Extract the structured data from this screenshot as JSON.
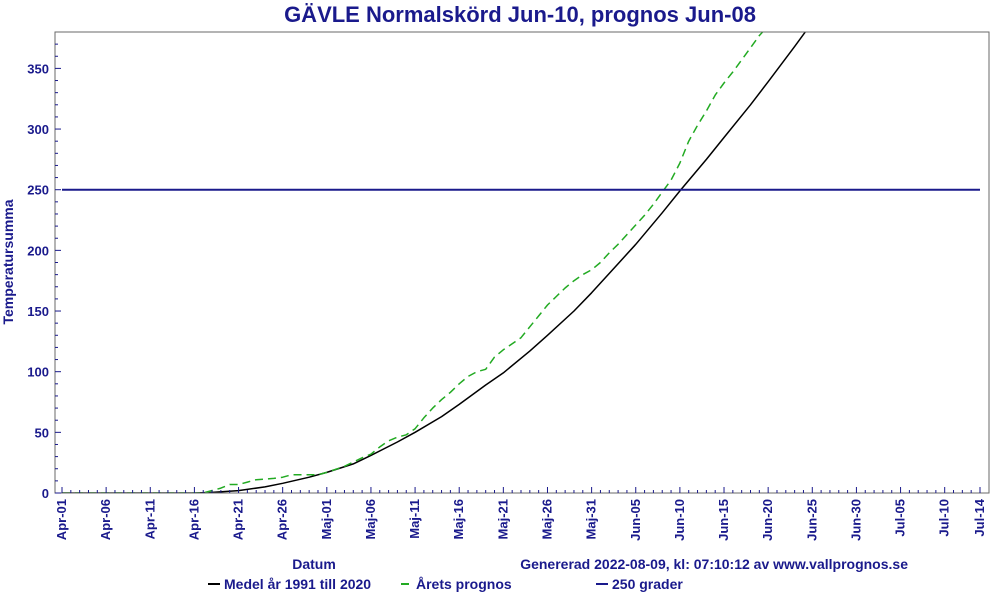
{
  "chart_data": {
    "type": "line",
    "title": "GÄVLE Normalskörd Jun-10, prognos Jun-08",
    "xlabel": "Datum",
    "ylabel": "Temperatursumma",
    "generated_text": "Genererad 2022-08-09, kl: 07:10:12 av www.vallprognos.se",
    "ylim": [
      0,
      380
    ],
    "xlim": [
      0,
      104
    ],
    "yticks": [
      0,
      50,
      100,
      150,
      200,
      250,
      300,
      350
    ],
    "xticks": [
      {
        "day": 0,
        "label": "Apr-01"
      },
      {
        "day": 5,
        "label": "Apr-06"
      },
      {
        "day": 10,
        "label": "Apr-11"
      },
      {
        "day": 15,
        "label": "Apr-16"
      },
      {
        "day": 20,
        "label": "Apr-21"
      },
      {
        "day": 25,
        "label": "Apr-26"
      },
      {
        "day": 30,
        "label": "Maj-01"
      },
      {
        "day": 35,
        "label": "Maj-06"
      },
      {
        "day": 40,
        "label": "Maj-11"
      },
      {
        "day": 45,
        "label": "Maj-16"
      },
      {
        "day": 50,
        "label": "Maj-21"
      },
      {
        "day": 55,
        "label": "Maj-26"
      },
      {
        "day": 60,
        "label": "Maj-31"
      },
      {
        "day": 65,
        "label": "Jun-05"
      },
      {
        "day": 70,
        "label": "Jun-10"
      },
      {
        "day": 75,
        "label": "Jun-15"
      },
      {
        "day": 80,
        "label": "Jun-20"
      },
      {
        "day": 85,
        "label": "Jun-25"
      },
      {
        "day": 90,
        "label": "Jun-30"
      },
      {
        "day": 95,
        "label": "Jul-05"
      },
      {
        "day": 100,
        "label": "Jul-10"
      },
      {
        "day": 104,
        "label": "Jul-14"
      }
    ],
    "series": [
      {
        "name": "Medel år 1991 till 2020",
        "color": "#000000",
        "dash": "solid",
        "points": [
          [
            0,
            0
          ],
          [
            15,
            0
          ],
          [
            17,
            0.5
          ],
          [
            20,
            2
          ],
          [
            23,
            5
          ],
          [
            25,
            8
          ],
          [
            28,
            13
          ],
          [
            30,
            17
          ],
          [
            33,
            24
          ],
          [
            35,
            31
          ],
          [
            38,
            42
          ],
          [
            40,
            50
          ],
          [
            43,
            63
          ],
          [
            45,
            73
          ],
          [
            48,
            89
          ],
          [
            50,
            99
          ],
          [
            53,
            117
          ],
          [
            55,
            130
          ],
          [
            58,
            150
          ],
          [
            60,
            165
          ],
          [
            63,
            189
          ],
          [
            65,
            205
          ],
          [
            68,
            231
          ],
          [
            70,
            249
          ],
          [
            73,
            275
          ],
          [
            75,
            293
          ],
          [
            78,
            320
          ],
          [
            80,
            339
          ],
          [
            83,
            368
          ],
          [
            85,
            388
          ]
        ]
      },
      {
        "name": "Årets prognos",
        "color": "#22aa22",
        "dash": "dashed",
        "points": [
          [
            0,
            0
          ],
          [
            16,
            0
          ],
          [
            18,
            4
          ],
          [
            19,
            7
          ],
          [
            20,
            7
          ],
          [
            21,
            9
          ],
          [
            22,
            11
          ],
          [
            24,
            12
          ],
          [
            25,
            13
          ],
          [
            26,
            15
          ],
          [
            28,
            15
          ],
          [
            29,
            15
          ],
          [
            30,
            17
          ],
          [
            32,
            22
          ],
          [
            34,
            29
          ],
          [
            35,
            32
          ],
          [
            36,
            38
          ],
          [
            37,
            43
          ],
          [
            38,
            46
          ],
          [
            39,
            48
          ],
          [
            40,
            53
          ],
          [
            41,
            62
          ],
          [
            42,
            70
          ],
          [
            43,
            77
          ],
          [
            44,
            83
          ],
          [
            45,
            90
          ],
          [
            46,
            96
          ],
          [
            47,
            100
          ],
          [
            48,
            102
          ],
          [
            49,
            112
          ],
          [
            50,
            118
          ],
          [
            51,
            123
          ],
          [
            52,
            128
          ],
          [
            53,
            137
          ],
          [
            54,
            146
          ],
          [
            55,
            155
          ],
          [
            56,
            162
          ],
          [
            57,
            169
          ],
          [
            58,
            175
          ],
          [
            59,
            180
          ],
          [
            60,
            184
          ],
          [
            61,
            190
          ],
          [
            62,
            198
          ],
          [
            63,
            205
          ],
          [
            64,
            213
          ],
          [
            65,
            221
          ],
          [
            66,
            229
          ],
          [
            67,
            238
          ],
          [
            68,
            248
          ],
          [
            69,
            258
          ],
          [
            70,
            272
          ],
          [
            71,
            290
          ],
          [
            72,
            303
          ],
          [
            73,
            315
          ],
          [
            74,
            328
          ],
          [
            75,
            338
          ],
          [
            76,
            347
          ],
          [
            77,
            357
          ],
          [
            78,
            367
          ],
          [
            79,
            377
          ],
          [
            80,
            385
          ],
          [
            81,
            396
          ],
          [
            82,
            410
          ]
        ]
      },
      {
        "name": "250 grader",
        "color": "#1a1a8c",
        "dash": "solid",
        "points": [
          [
            0,
            250
          ],
          [
            104,
            250
          ]
        ]
      }
    ],
    "legend_position": "bottom",
    "grid": false
  }
}
